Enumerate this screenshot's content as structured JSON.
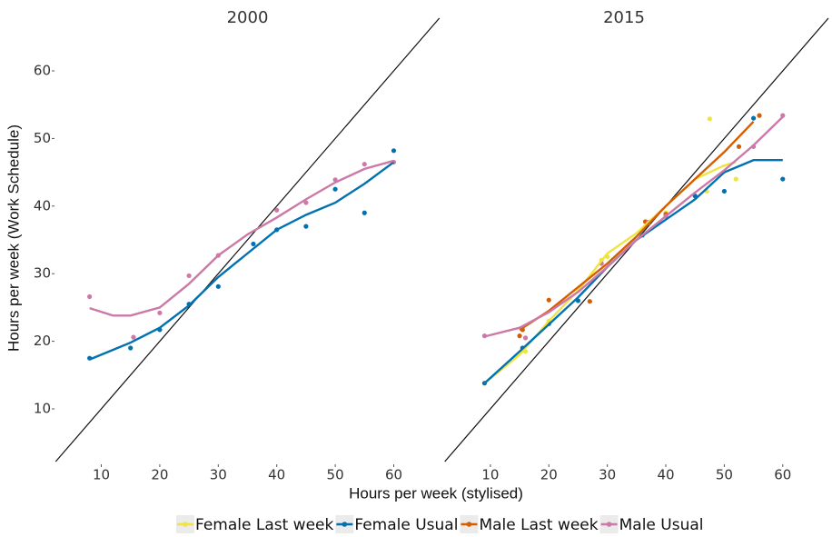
{
  "chart_data": [
    {
      "type": "scatter",
      "title": "2000",
      "x_label": "Hours per week (stylised)",
      "y_label": "Hours per week (Work Schedule)",
      "xlim": [
        2,
        68
      ],
      "ylim": [
        2.2,
        67.8
      ],
      "xticks": [
        10,
        20,
        30,
        40,
        50,
        60
      ],
      "yticks": [
        10,
        20,
        30,
        40,
        50,
        60
      ],
      "diagonal": true,
      "series": [
        {
          "name": "Female Usual",
          "color": "#0072b2",
          "x": [
            8,
            15,
            20,
            25,
            30,
            36,
            40,
            45,
            50,
            55,
            60
          ],
          "values": [
            17.5,
            19,
            21.7,
            25.5,
            28.1,
            34.4,
            36.5,
            37,
            42.5,
            39,
            48.2
          ],
          "curve_x": [
            8,
            15,
            20,
            25,
            30,
            35,
            40,
            45,
            50,
            55,
            60
          ],
          "curve_values": [
            17.3,
            19.8,
            22,
            25.3,
            29.5,
            33,
            36.5,
            38.7,
            40.5,
            43.3,
            46.5
          ]
        },
        {
          "name": "Male Usual",
          "color": "#cc79a7",
          "x": [
            8,
            15.5,
            20,
            25,
            30,
            40,
            45,
            50,
            55,
            60
          ],
          "values": [
            26.6,
            20.6,
            24.2,
            29.7,
            32.7,
            39.4,
            40.5,
            43.9,
            46.2,
            46.5
          ],
          "curve_x": [
            8,
            12,
            15,
            20,
            25,
            30,
            35,
            40,
            45,
            50,
            55,
            60
          ],
          "curve_values": [
            24.9,
            23.8,
            23.8,
            25,
            28.5,
            32.7,
            35.8,
            38.3,
            41,
            43.5,
            45.5,
            46.7
          ]
        }
      ]
    },
    {
      "type": "scatter",
      "title": "2015",
      "xlim": [
        -2.1,
        67.8
      ],
      "ylim": [
        2.2,
        67.8
      ],
      "xticks": [
        10,
        20,
        30,
        40,
        50,
        60
      ],
      "diagonal": true,
      "series": [
        {
          "name": "Female Last week",
          "color": "#f0e442",
          "x": [
            9,
            16,
            20,
            29,
            30,
            37,
            40,
            47,
            47.5,
            52
          ],
          "values": [
            13.8,
            18.5,
            23,
            32,
            32.5,
            37.5,
            39,
            42.2,
            52.9,
            44
          ],
          "curve_x": [
            9,
            15,
            20,
            25,
            30,
            35,
            40,
            45,
            50,
            52
          ],
          "curve_values": [
            13.8,
            18,
            23,
            27.5,
            33,
            36,
            40,
            44,
            46,
            46.5
          ]
        },
        {
          "name": "Female Usual",
          "color": "#0072b2",
          "x": [
            9,
            15.5,
            20,
            25,
            36,
            40,
            45,
            50,
            55,
            60
          ],
          "values": [
            13.8,
            19,
            22.6,
            26,
            35.7,
            38.5,
            41.5,
            42.2,
            53,
            44
          ],
          "curve_x": [
            9,
            15,
            20,
            25,
            30,
            35,
            40,
            45,
            50,
            55,
            60
          ],
          "curve_values": [
            13.8,
            18.5,
            22.5,
            26.5,
            31,
            35,
            38,
            41,
            45,
            46.8,
            46.8
          ]
        },
        {
          "name": "Male Last week",
          "color": "#d55e00",
          "x": [
            15,
            15.5,
            20,
            27,
            36.5,
            40,
            52.5,
            56
          ],
          "values": [
            20.8,
            21.7,
            26.1,
            25.9,
            37.7,
            38.8,
            48.8,
            53.4
          ],
          "curve_x": [
            15,
            20,
            25,
            30,
            35,
            40,
            45,
            50,
            55
          ],
          "curve_values": [
            21.7,
            24.5,
            28,
            31.5,
            35.5,
            40,
            44,
            48,
            52.5
          ]
        },
        {
          "name": "Male Usual",
          "color": "#cc79a7",
          "x": [
            9,
            16,
            29,
            37,
            40,
            55,
            60
          ],
          "values": [
            20.8,
            20.5,
            31.5,
            37.6,
            38.5,
            48.8,
            53.4
          ],
          "curve_x": [
            9,
            15,
            20,
            25,
            30,
            35,
            40,
            45,
            50,
            55,
            60
          ],
          "curve_values": [
            20.7,
            22,
            24.3,
            27.3,
            31,
            35,
            38.5,
            42,
            45.3,
            49,
            53.2
          ]
        }
      ]
    }
  ]
}
